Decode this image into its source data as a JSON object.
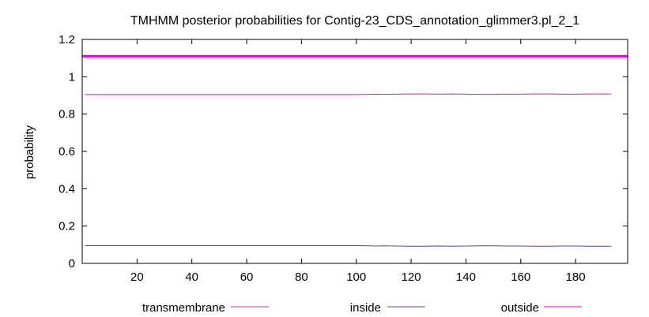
{
  "chart_data": {
    "type": "line",
    "title": "TMHMM posterior probabilities for Contig-23_CDS_annotation_glimmer3.pl_2_1",
    "xlabel": "",
    "ylabel": "probability",
    "xlim": [
      0,
      199
    ],
    "ylim": [
      0,
      1.2
    ],
    "xticks": [
      20,
      40,
      60,
      80,
      100,
      120,
      140,
      160,
      180
    ],
    "yticks": [
      0,
      0.2,
      0.4,
      0.6,
      0.8,
      1,
      1.2
    ],
    "ytick_labels": [
      "0",
      "0.2",
      "0.4",
      "0.6",
      "0.8",
      "1",
      "1.2"
    ],
    "grid": false,
    "legend_position": "bottom",
    "band": {
      "name": "outside",
      "y": 1.11,
      "x": [
        0,
        199
      ],
      "color": "#e000e0"
    },
    "series": [
      {
        "name": "transmembrane",
        "color": "#e0305a",
        "x": [
          1,
          199
        ],
        "y": [
          0.0,
          0.0
        ]
      },
      {
        "name": "inside",
        "color": "#4a4aa8",
        "x": [
          1,
          100,
          105,
          107,
          110,
          115,
          120,
          125,
          130,
          135,
          140,
          145,
          150,
          155,
          160,
          165,
          170,
          175,
          180,
          185,
          190,
          193
        ],
        "y": [
          0.095,
          0.095,
          0.094,
          0.093,
          0.094,
          0.093,
          0.092,
          0.092,
          0.093,
          0.092,
          0.093,
          0.094,
          0.094,
          0.093,
          0.093,
          0.092,
          0.092,
          0.093,
          0.093,
          0.092,
          0.092,
          0.092
        ]
      },
      {
        "name": "outside",
        "color": "#e000e0",
        "x": [
          1,
          100,
          105,
          107,
          110,
          115,
          120,
          125,
          130,
          135,
          140,
          145,
          150,
          155,
          160,
          165,
          170,
          175,
          180,
          185,
          190,
          193
        ],
        "y": [
          0.905,
          0.905,
          0.906,
          0.907,
          0.906,
          0.907,
          0.908,
          0.908,
          0.907,
          0.908,
          0.907,
          0.906,
          0.906,
          0.907,
          0.907,
          0.908,
          0.908,
          0.907,
          0.907,
          0.908,
          0.908,
          0.908
        ]
      }
    ]
  }
}
